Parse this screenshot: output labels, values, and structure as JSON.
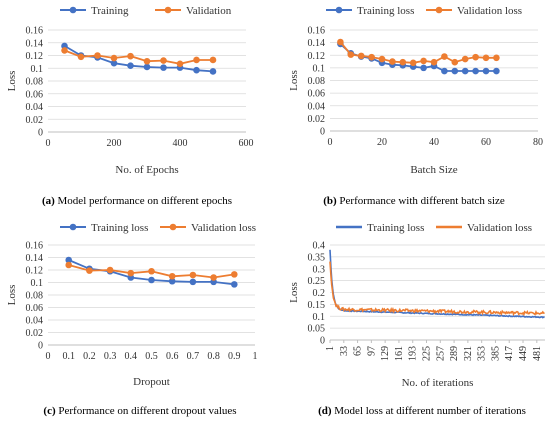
{
  "colors": {
    "training": "#4472C4",
    "validation": "#ED7D31"
  },
  "chart_data": [
    {
      "id": "a",
      "type": "line",
      "x": [
        50,
        100,
        150,
        200,
        250,
        300,
        350,
        400,
        450,
        500
      ],
      "series": [
        {
          "name": "Training",
          "values": [
            0.135,
            0.12,
            0.117,
            0.108,
            0.104,
            0.102,
            0.101,
            0.101,
            0.097,
            0.095
          ]
        },
        {
          "name": "Validation",
          "values": [
            0.128,
            0.118,
            0.12,
            0.116,
            0.119,
            0.111,
            0.112,
            0.107,
            0.113,
            0.113
          ]
        }
      ],
      "xlim": [
        0,
        600
      ],
      "xticks": [
        0,
        200,
        400,
        600
      ],
      "ylim": [
        0,
        0.16
      ],
      "yticks": [
        "0",
        "0.02",
        "0.04",
        "0.06",
        "0.08",
        "0.1",
        "0.12",
        "0.14",
        "0.16"
      ],
      "xlabel": "No. of Epochs",
      "ylabel": "Loss",
      "caption_bold": "(a)",
      "caption": " Model performance on different epochs",
      "markers": true,
      "legend": "top"
    },
    {
      "id": "b",
      "type": "line",
      "x": [
        4,
        8,
        12,
        16,
        20,
        24,
        28,
        32,
        36,
        40,
        44,
        48,
        52,
        56,
        60,
        64
      ],
      "series": [
        {
          "name": "Training loss",
          "values": [
            0.138,
            0.123,
            0.118,
            0.115,
            0.108,
            0.105,
            0.104,
            0.102,
            0.1,
            0.103,
            0.095,
            0.095,
            0.095,
            0.095,
            0.095,
            0.095
          ]
        },
        {
          "name": "Validation loss",
          "values": [
            0.141,
            0.121,
            0.119,
            0.117,
            0.114,
            0.11,
            0.109,
            0.108,
            0.111,
            0.109,
            0.118,
            0.109,
            0.114,
            0.117,
            0.116,
            0.116
          ]
        }
      ],
      "xlim": [
        0,
        80
      ],
      "xticks": [
        0,
        20,
        40,
        60,
        80
      ],
      "ylim": [
        0,
        0.16
      ],
      "yticks": [
        "0",
        "0.02",
        "0.04",
        "0.06",
        "0.08",
        "0.1",
        "0.12",
        "0.14",
        "0.16"
      ],
      "xlabel": "Batch Size",
      "ylabel": "Loss",
      "caption_bold": "(b)",
      "caption": " Performance with different batch size",
      "markers": true,
      "legend": "top"
    },
    {
      "id": "c",
      "type": "line",
      "x": [
        0.1,
        0.2,
        0.3,
        0.4,
        0.5,
        0.6,
        0.7,
        0.8,
        0.9
      ],
      "series": [
        {
          "name": "Training loss",
          "values": [
            0.136,
            0.122,
            0.118,
            0.108,
            0.104,
            0.102,
            0.101,
            0.101,
            0.097
          ]
        },
        {
          "name": "Validation loss",
          "values": [
            0.128,
            0.119,
            0.12,
            0.115,
            0.118,
            0.11,
            0.112,
            0.108,
            0.113
          ]
        }
      ],
      "xlim": [
        0,
        1
      ],
      "xticks": [
        "0",
        "0.1",
        "0.2",
        "0.3",
        "0.4",
        "0.5",
        "0.6",
        "0.7",
        "0.8",
        "0.9",
        "1"
      ],
      "ylim": [
        0,
        0.16
      ],
      "yticks": [
        "0",
        "0.02",
        "0.04",
        "0.06",
        "0.08",
        "0.1",
        "0.12",
        "0.14",
        "0.16"
      ],
      "xlabel": "Dropout",
      "ylabel": "Loss",
      "caption_bold": "(c)",
      "caption": " Performance on different dropout values",
      "markers": true,
      "legend": "top"
    },
    {
      "id": "d",
      "type": "line",
      "x_range": [
        1,
        500
      ],
      "series": [
        {
          "name": "Training loss",
          "start": 0.38,
          "end": 0.096,
          "decay": 6,
          "plateau_start": 0.125,
          "noise": 0.002
        },
        {
          "name": "Validation loss",
          "start": 0.33,
          "end": 0.112,
          "decay": 6,
          "plateau_start": 0.13,
          "noise": 0.006
        }
      ],
      "xlim": [
        1,
        500
      ],
      "xticks": [
        "1",
        "33",
        "65",
        "97",
        "129",
        "161",
        "193",
        "225",
        "257",
        "289",
        "321",
        "353",
        "385",
        "417",
        "449",
        "481"
      ],
      "ylim": [
        0,
        0.4
      ],
      "yticks": [
        "0",
        "0.05",
        "0.1",
        "0.15",
        "0.2",
        "0.25",
        "0.3",
        "0.35",
        "0.4"
      ],
      "xlabel": "No. of iterations",
      "ylabel": "Loss",
      "caption_bold": "(d)",
      "caption": " Model loss at different number of iterations",
      "markers": false,
      "legend": "top"
    }
  ]
}
